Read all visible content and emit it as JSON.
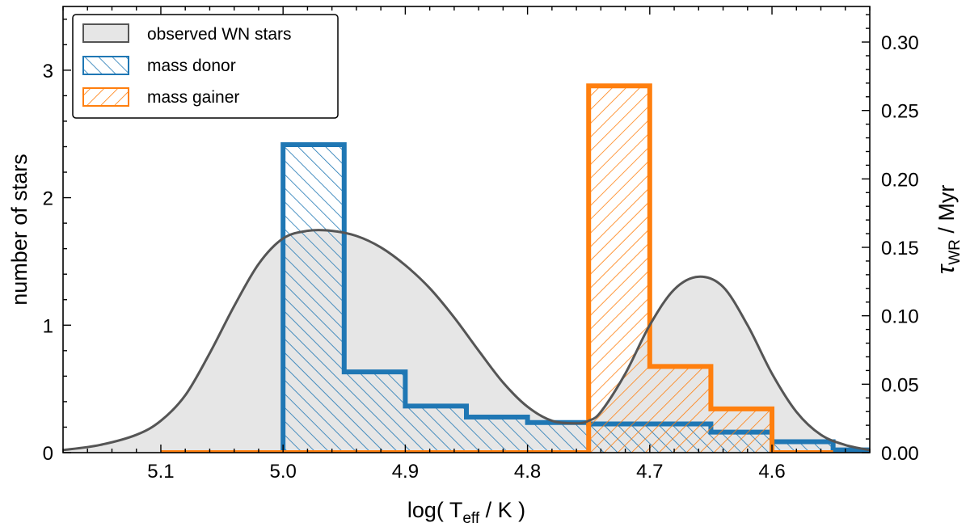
{
  "chart_data": {
    "type": "histogram",
    "x": {
      "label_prefix": "log( T",
      "label_sub": "eff",
      "label_suffix": " / K )",
      "lim": [
        5.18,
        4.52
      ],
      "ticks": [
        5.1,
        5.0,
        4.9,
        4.8,
        4.7,
        4.6
      ],
      "tick_labels": [
        "5.1",
        "5.0",
        "4.9",
        "4.8",
        "4.7",
        "4.6"
      ],
      "inverted": true
    },
    "y_left": {
      "label": "number of stars",
      "lim": [
        0,
        3.5
      ],
      "ticks": [
        0,
        1,
        2,
        3
      ],
      "tick_labels": [
        "0",
        "1",
        "2",
        "3"
      ]
    },
    "y_right": {
      "label_prefix": "τ",
      "label_sub": "WR",
      "label_suffix": " / Myr",
      "lim": [
        0,
        0.326
      ],
      "ticks": [
        0.0,
        0.05,
        0.1,
        0.15,
        0.2,
        0.25,
        0.3
      ],
      "tick_labels": [
        "0.00",
        "0.05",
        "0.10",
        "0.15",
        "0.20",
        "0.25",
        "0.30"
      ]
    },
    "legend": {
      "position": "top-left",
      "entries": [
        {
          "label": "observed WN stars",
          "key": "observed"
        },
        {
          "label": "mass donor",
          "key": "donor"
        },
        {
          "label": "mass gainer",
          "key": "gainer"
        }
      ]
    },
    "series": [
      {
        "name": "observed WN stars",
        "key": "observed",
        "type": "area",
        "axis": "left",
        "color": "#555555",
        "fill": "#e6e6e6",
        "x": [
          5.18,
          5.15,
          5.12,
          5.1,
          5.08,
          5.06,
          5.04,
          5.02,
          5.0,
          4.98,
          4.96,
          4.94,
          4.92,
          4.9,
          4.88,
          4.86,
          4.84,
          4.82,
          4.8,
          4.78,
          4.76,
          4.75,
          4.74,
          4.72,
          4.7,
          4.68,
          4.66,
          4.64,
          4.62,
          4.6,
          4.58,
          4.56,
          4.54,
          4.52
        ],
        "y": [
          0.02,
          0.06,
          0.14,
          0.25,
          0.45,
          0.78,
          1.15,
          1.48,
          1.68,
          1.74,
          1.74,
          1.7,
          1.61,
          1.47,
          1.29,
          1.06,
          0.8,
          0.55,
          0.36,
          0.25,
          0.23,
          0.25,
          0.32,
          0.62,
          1.0,
          1.28,
          1.38,
          1.3,
          1.0,
          0.62,
          0.32,
          0.14,
          0.06,
          0.02
        ]
      },
      {
        "name": "mass donor",
        "key": "donor",
        "type": "step-histogram",
        "axis": "right",
        "color": "#1f77b4",
        "bin_edges": [
          5.1,
          5.0,
          4.95,
          4.9,
          4.85,
          4.8,
          4.75,
          4.7,
          4.65,
          4.6,
          4.55,
          4.52
        ],
        "values": [
          0.0,
          0.225,
          0.059,
          0.034,
          0.026,
          0.022,
          0.021,
          0.021,
          0.015,
          0.008,
          0.002
        ]
      },
      {
        "name": "mass gainer",
        "key": "gainer",
        "type": "step-histogram",
        "axis": "right",
        "color": "#ff7f0e",
        "bin_edges": [
          5.1,
          4.75,
          4.7,
          4.65,
          4.6,
          4.55
        ],
        "values": [
          0.0,
          0.268,
          0.063,
          0.032,
          0.0
        ]
      }
    ]
  }
}
